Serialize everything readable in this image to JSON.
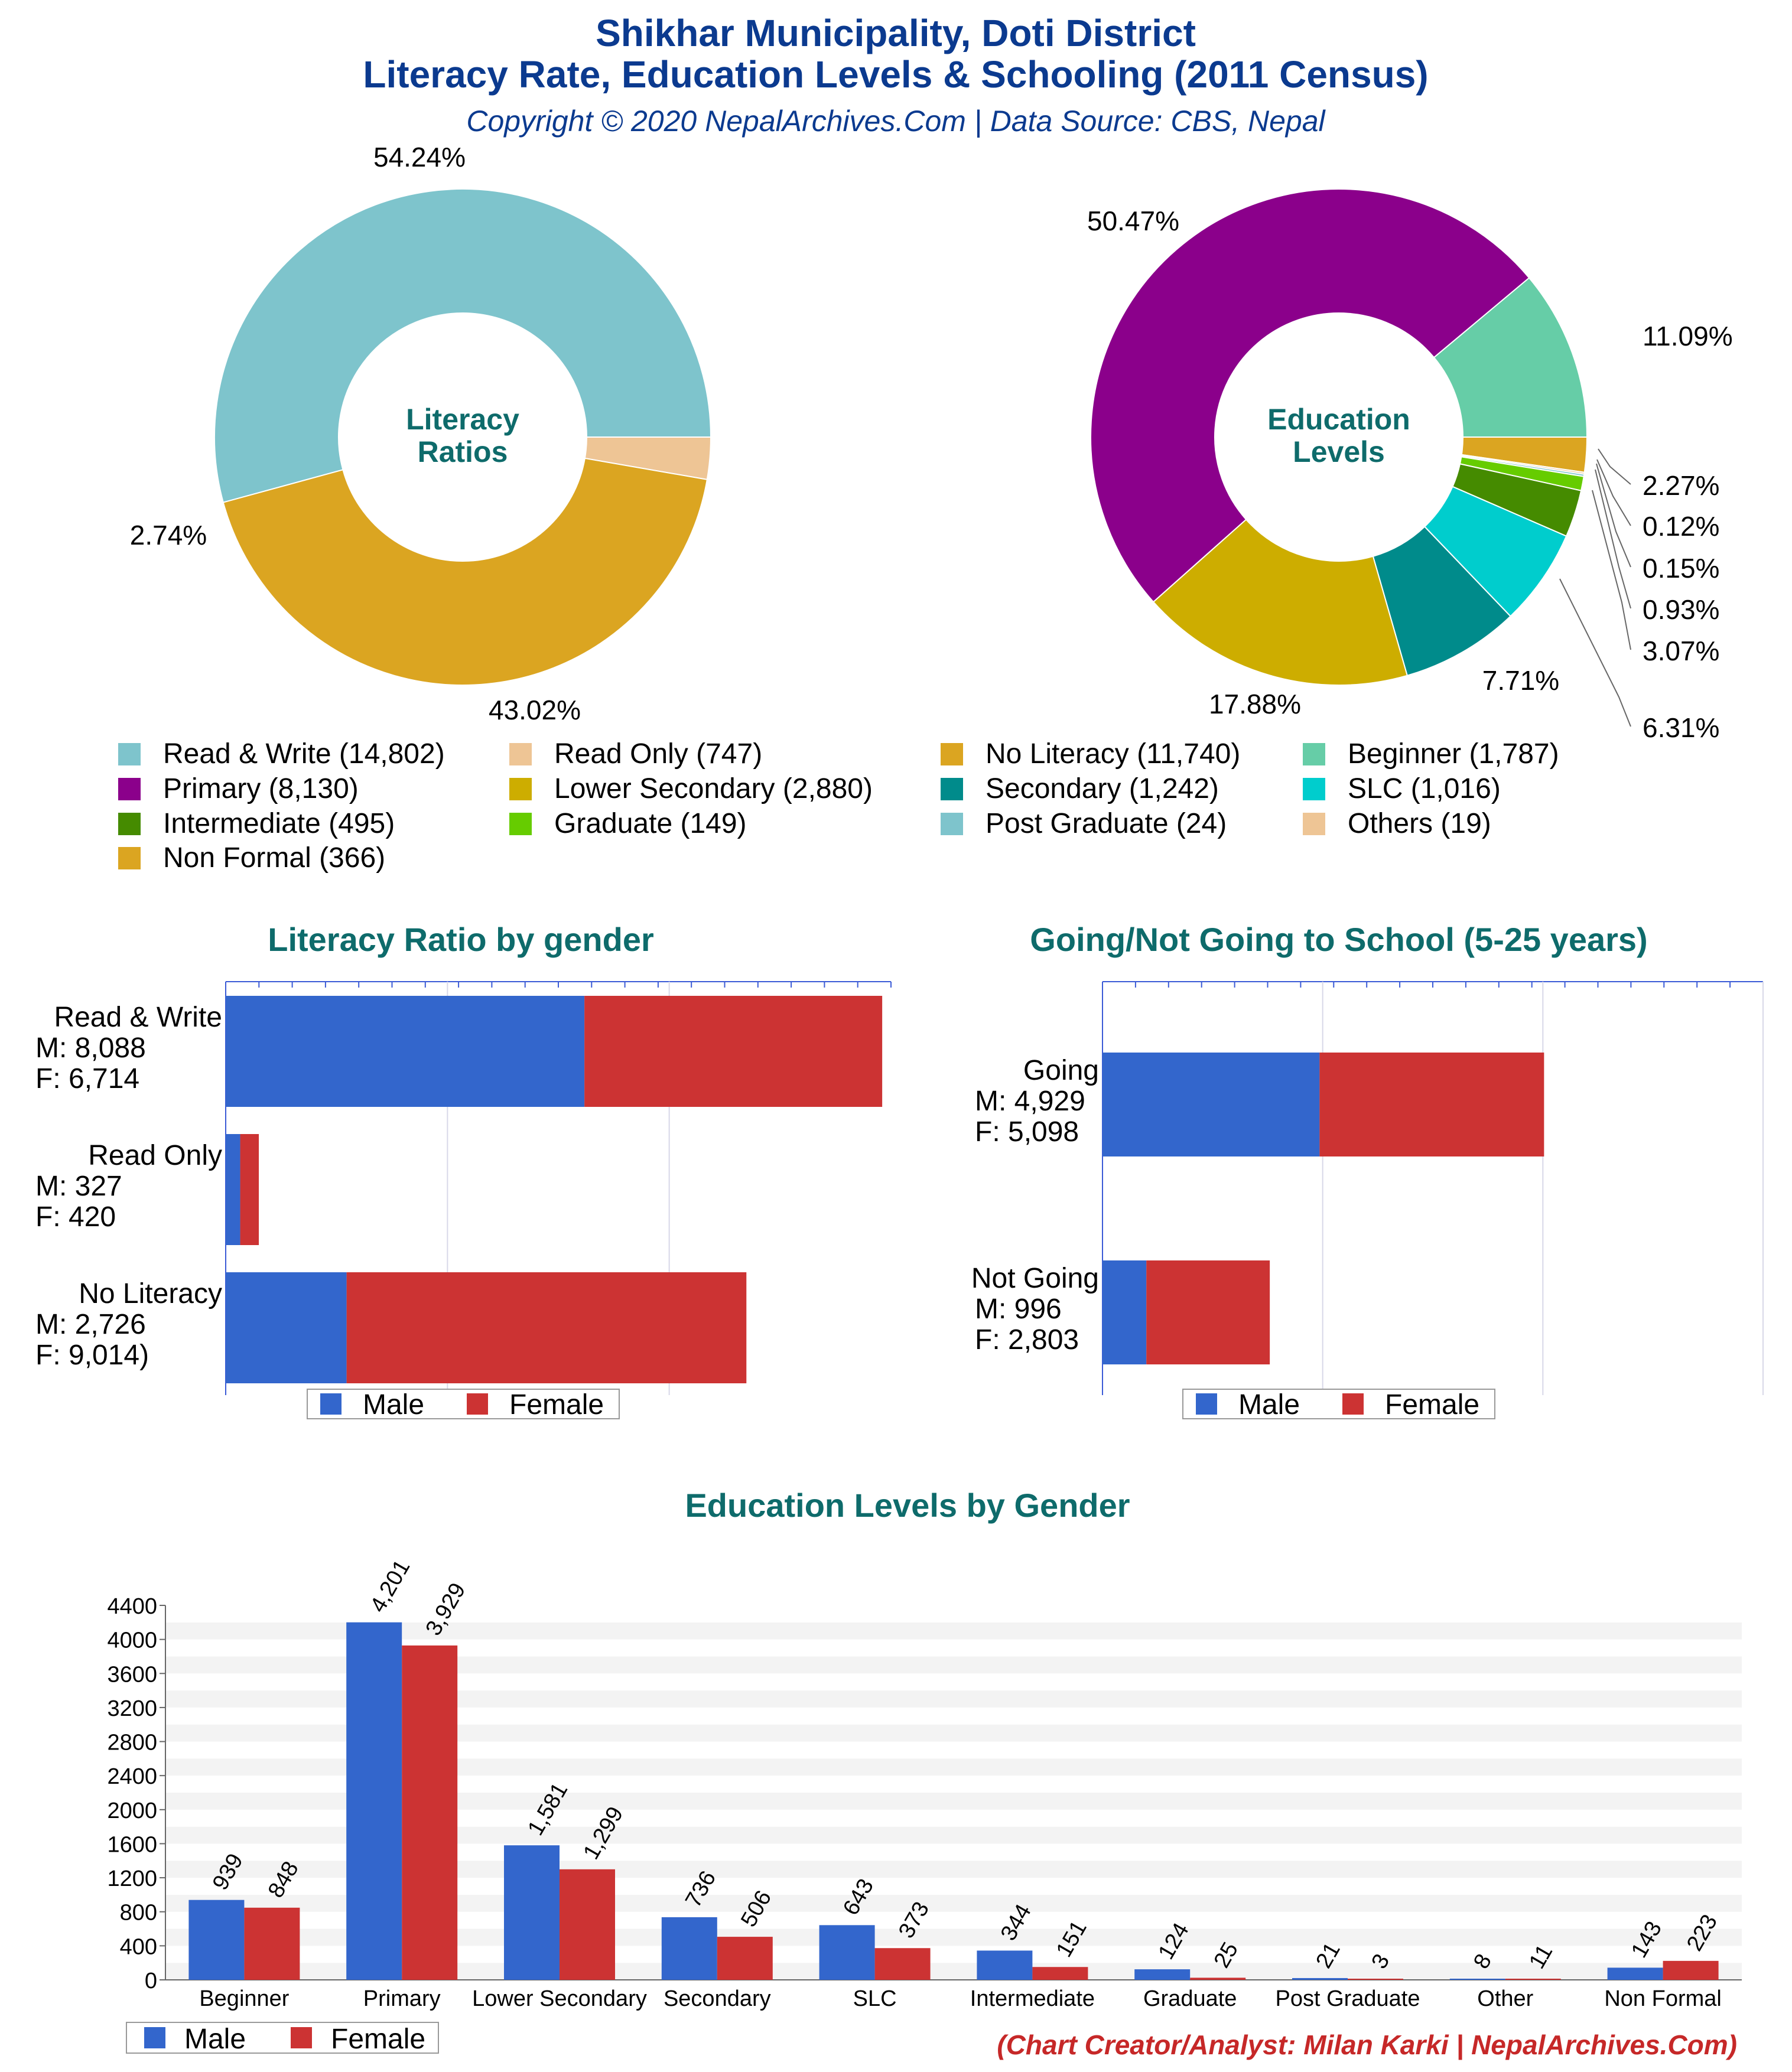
{
  "header": {
    "title_line1": "Shikhar Municipality, Doti District",
    "title_line2": "Literacy Rate, Education Levels & Schooling (2011 Census)",
    "copyright": "Copyright © 2020 NepalArchives.Com | Data Source: CBS, Nepal"
  },
  "colors": {
    "male": "#3366cc",
    "female": "#cc3333",
    "title": "#0b3a8f",
    "section": "#0e6b6b",
    "credit": "#c62828"
  },
  "donut_literacy": {
    "center_line1": "Literacy",
    "center_line2": "Ratios",
    "slices": [
      {
        "label": "Read & Write",
        "value": 14802,
        "pct": "54.24%",
        "color": "#7ec4cc"
      },
      {
        "label": "Read Only",
        "value": 747,
        "pct": "2.74%",
        "color": "#eec595"
      },
      {
        "label": "No Literacy",
        "value": 11740,
        "pct": "43.02%",
        "color": "#dba521"
      }
    ]
  },
  "donut_education": {
    "center_line1": "Education",
    "center_line2": "Levels",
    "slices": [
      {
        "label": "Beginner",
        "value": 1787,
        "pct": "11.09%",
        "color": "#66cda7"
      },
      {
        "label": "Non Formal",
        "value": 366,
        "pct": "2.27%",
        "color": "#dba521"
      },
      {
        "label": "Others",
        "value": 19,
        "pct": "0.12%",
        "color": "#eec595"
      },
      {
        "label": "Post Graduate",
        "value": 24,
        "pct": "0.15%",
        "color": "#7ec4cc"
      },
      {
        "label": "Graduate",
        "value": 149,
        "pct": "0.93%",
        "color": "#66cc00"
      },
      {
        "label": "Intermediate",
        "value": 495,
        "pct": "3.07%",
        "color": "#458b00"
      },
      {
        "label": "SLC",
        "value": 1016,
        "pct": "6.31%",
        "color": "#00cdcd"
      },
      {
        "label": "Secondary",
        "value": 1242,
        "pct": "7.71%",
        "color": "#008b8b"
      },
      {
        "label": "Lower Secondary",
        "value": 2880,
        "pct": "17.88%",
        "color": "#cdad00"
      },
      {
        "label": "Primary",
        "value": 8130,
        "pct": "50.47%",
        "color": "#8b008b"
      }
    ]
  },
  "legend": {
    "items": [
      {
        "text": "Read & Write (14,802)",
        "color": "#7ec4cc"
      },
      {
        "text": "Read Only (747)",
        "color": "#eec595"
      },
      {
        "text": "No Literacy (11,740)",
        "color": "#dba521"
      },
      {
        "text": "Beginner (1,787)",
        "color": "#66cda7"
      },
      {
        "text": "Primary (8,130)",
        "color": "#8b008b"
      },
      {
        "text": "Lower Secondary (2,880)",
        "color": "#cdad00"
      },
      {
        "text": "Secondary (1,242)",
        "color": "#008b8b"
      },
      {
        "text": "SLC (1,016)",
        "color": "#00cdcd"
      },
      {
        "text": "Intermediate (495)",
        "color": "#458b00"
      },
      {
        "text": "Graduate (149)",
        "color": "#66cc00"
      },
      {
        "text": "Post Graduate (24)",
        "color": "#7ec4cc"
      },
      {
        "text": "Others (19)",
        "color": "#eec595"
      },
      {
        "text": "Non Formal (366)",
        "color": "#dba521"
      }
    ]
  },
  "literacy_gender": {
    "title": "Literacy Ratio by gender",
    "rows": [
      {
        "line1": "Read & Write",
        "line2": "M: 8,088",
        "line3": "F: 6,714",
        "male": 8088,
        "female": 6714
      },
      {
        "line1": "Read Only",
        "line2": "M: 327",
        "line3": "F: 420",
        "male": 327,
        "female": 420
      },
      {
        "line1": "No Literacy",
        "line2": "M: 2,726",
        "line3": "F: 9,014)",
        "male": 2726,
        "female": 9014
      }
    ],
    "legend_male": "Male",
    "legend_female": "Female"
  },
  "school": {
    "title": "Going/Not Going to School (5-25 years)",
    "rows": [
      {
        "line1": "Going",
        "line2": "M: 4,929",
        "line3": "F: 5,098",
        "male": 4929,
        "female": 5098
      },
      {
        "line1": "Not Going",
        "line2": "M: 996",
        "line3": "F: 2,803",
        "male": 996,
        "female": 2803
      }
    ],
    "legend_male": "Male",
    "legend_female": "Female"
  },
  "chart_data": [
    {
      "type": "pie",
      "title": "Literacy Ratios",
      "categories": [
        "Read & Write",
        "Read Only",
        "No Literacy"
      ],
      "values": [
        14802,
        747,
        11740
      ],
      "percent_labels": [
        "54.24%",
        "2.74%",
        "43.02%"
      ]
    },
    {
      "type": "pie",
      "title": "Education Levels",
      "categories": [
        "Beginner",
        "Primary",
        "Lower Secondary",
        "Secondary",
        "SLC",
        "Intermediate",
        "Graduate",
        "Post Graduate",
        "Others",
        "Non Formal"
      ],
      "values": [
        1787,
        8130,
        2880,
        1242,
        1016,
        495,
        149,
        24,
        19,
        366
      ],
      "percent_labels": [
        "11.09%",
        "50.47%",
        "17.88%",
        "7.71%",
        "6.31%",
        "3.07%",
        "0.93%",
        "0.15%",
        "0.12%",
        "2.27%"
      ]
    },
    {
      "type": "bar",
      "title": "Literacy Ratio by gender",
      "orientation": "horizontal-stacked",
      "categories": [
        "Read & Write",
        "Read Only",
        "No Literacy"
      ],
      "series": [
        {
          "name": "Male",
          "values": [
            8088,
            327,
            2726
          ]
        },
        {
          "name": "Female",
          "values": [
            6714,
            420,
            9014
          ]
        }
      ],
      "xlim": [
        0,
        15000
      ],
      "grid": true,
      "legend": "bottom"
    },
    {
      "type": "bar",
      "title": "Going/Not Going to School (5-25 years)",
      "orientation": "horizontal-stacked",
      "categories": [
        "Going",
        "Not Going"
      ],
      "series": [
        {
          "name": "Male",
          "values": [
            4929,
            996
          ]
        },
        {
          "name": "Female",
          "values": [
            5098,
            2803
          ]
        }
      ],
      "xlim": [
        0,
        15000
      ],
      "grid": true,
      "legend": "bottom"
    },
    {
      "type": "bar",
      "title": "Education Levels by Gender",
      "orientation": "vertical-grouped",
      "categories": [
        "Beginner",
        "Primary",
        "Lower Secondary",
        "Secondary",
        "SLC",
        "Intermediate",
        "Graduate",
        "Post Graduate",
        "Other",
        "Non Formal"
      ],
      "series": [
        {
          "name": "Male",
          "values": [
            939,
            4201,
            1581,
            736,
            643,
            344,
            124,
            21,
            8,
            143
          ],
          "labels": [
            "939",
            "4,201",
            "1,581",
            "736",
            "643",
            "344",
            "124",
            "21",
            "8",
            "143"
          ]
        },
        {
          "name": "Female",
          "values": [
            848,
            3929,
            1299,
            506,
            373,
            151,
            25,
            3,
            11,
            223
          ],
          "labels": [
            "848",
            "3,929",
            "1,299",
            "506",
            "373",
            "151",
            "25",
            "3",
            "11",
            "223"
          ]
        }
      ],
      "ylim": [
        0,
        4400
      ],
      "yticks": [
        "0",
        "400",
        "800",
        "1200",
        "1600",
        "2000",
        "2400",
        "2800",
        "3200",
        "3600",
        "4000",
        "4400"
      ],
      "grid": true,
      "legend": "bottom-left"
    }
  ],
  "edu_gender": {
    "title": "Education Levels by Gender",
    "legend_male": "Male",
    "legend_female": "Female"
  },
  "footer": {
    "credit": "(Chart Creator/Analyst: Milan Karki | NepalArchives.Com)"
  }
}
